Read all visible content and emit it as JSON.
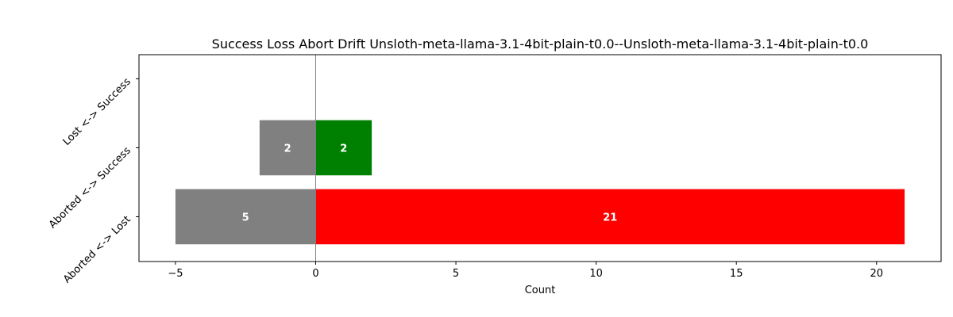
{
  "chart_data": {
    "type": "bar",
    "orientation": "horizontal",
    "title": "Success Loss Abort Drift Unsloth-meta-llama-3.1-4bit-plain-t0.0--Unsloth-meta-llama-3.1-4bit-plain-t0.0",
    "xlabel": "Count",
    "ylabel": "",
    "categories": [
      "Aborted <-> Lost",
      "Aborted <-> Success",
      "Lost <-> Success"
    ],
    "series": [
      {
        "values": [
          -5,
          -2,
          0
        ],
        "labels": [
          "5",
          "2",
          ""
        ],
        "color": "#808080"
      },
      {
        "values": [
          21,
          2,
          0
        ],
        "labels": [
          "21",
          "2",
          ""
        ],
        "colors": [
          "#ff0000",
          "#008000",
          "#008000"
        ]
      }
    ],
    "xlim": [
      -6.3,
      22.3
    ],
    "xticks": [
      -5,
      0,
      5,
      10,
      15,
      20
    ],
    "xtick_labels": [
      "−5",
      "0",
      "5",
      "10",
      "15",
      "20"
    ],
    "zero_line": true,
    "grid": false
  }
}
